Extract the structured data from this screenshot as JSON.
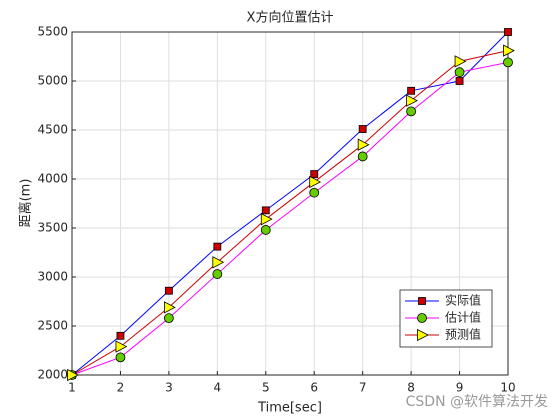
{
  "chart_data": {
    "type": "line",
    "title": "X方向位置估计",
    "xlabel": "Time[sec]",
    "ylabel": "距离(m)",
    "watermark": "CSDN @软件算法开发",
    "x": [
      1,
      2,
      3,
      4,
      5,
      6,
      7,
      8,
      9,
      10
    ],
    "series": [
      {
        "name": "实际值",
        "color": "#0000ff",
        "marker": "square",
        "marker_color": "#cc0000",
        "values": [
          2000,
          2400,
          2860,
          3310,
          3680,
          4050,
          4510,
          4900,
          5000,
          5500
        ]
      },
      {
        "name": "估计值",
        "color": "#ff00ff",
        "marker": "circle",
        "marker_color": "#66cc00",
        "values": [
          2000,
          2180,
          2580,
          3030,
          3480,
          3860,
          4230,
          4690,
          5090,
          5190
        ]
      },
      {
        "name": "预测值",
        "color": "#cc0000",
        "marker": "triangle",
        "marker_color": "#ffff00",
        "values": [
          2000,
          2290,
          2690,
          3150,
          3590,
          3970,
          4350,
          4800,
          5200,
          5310
        ]
      }
    ],
    "xlim": [
      1,
      10
    ],
    "xticks": [
      1,
      2,
      3,
      4,
      5,
      6,
      7,
      8,
      9,
      10
    ],
    "ylim": [
      2000,
      5500
    ],
    "yticks": [
      2000,
      2500,
      3000,
      3500,
      4000,
      4500,
      5000,
      5500
    ],
    "grid": true,
    "legend": "lower-right"
  }
}
